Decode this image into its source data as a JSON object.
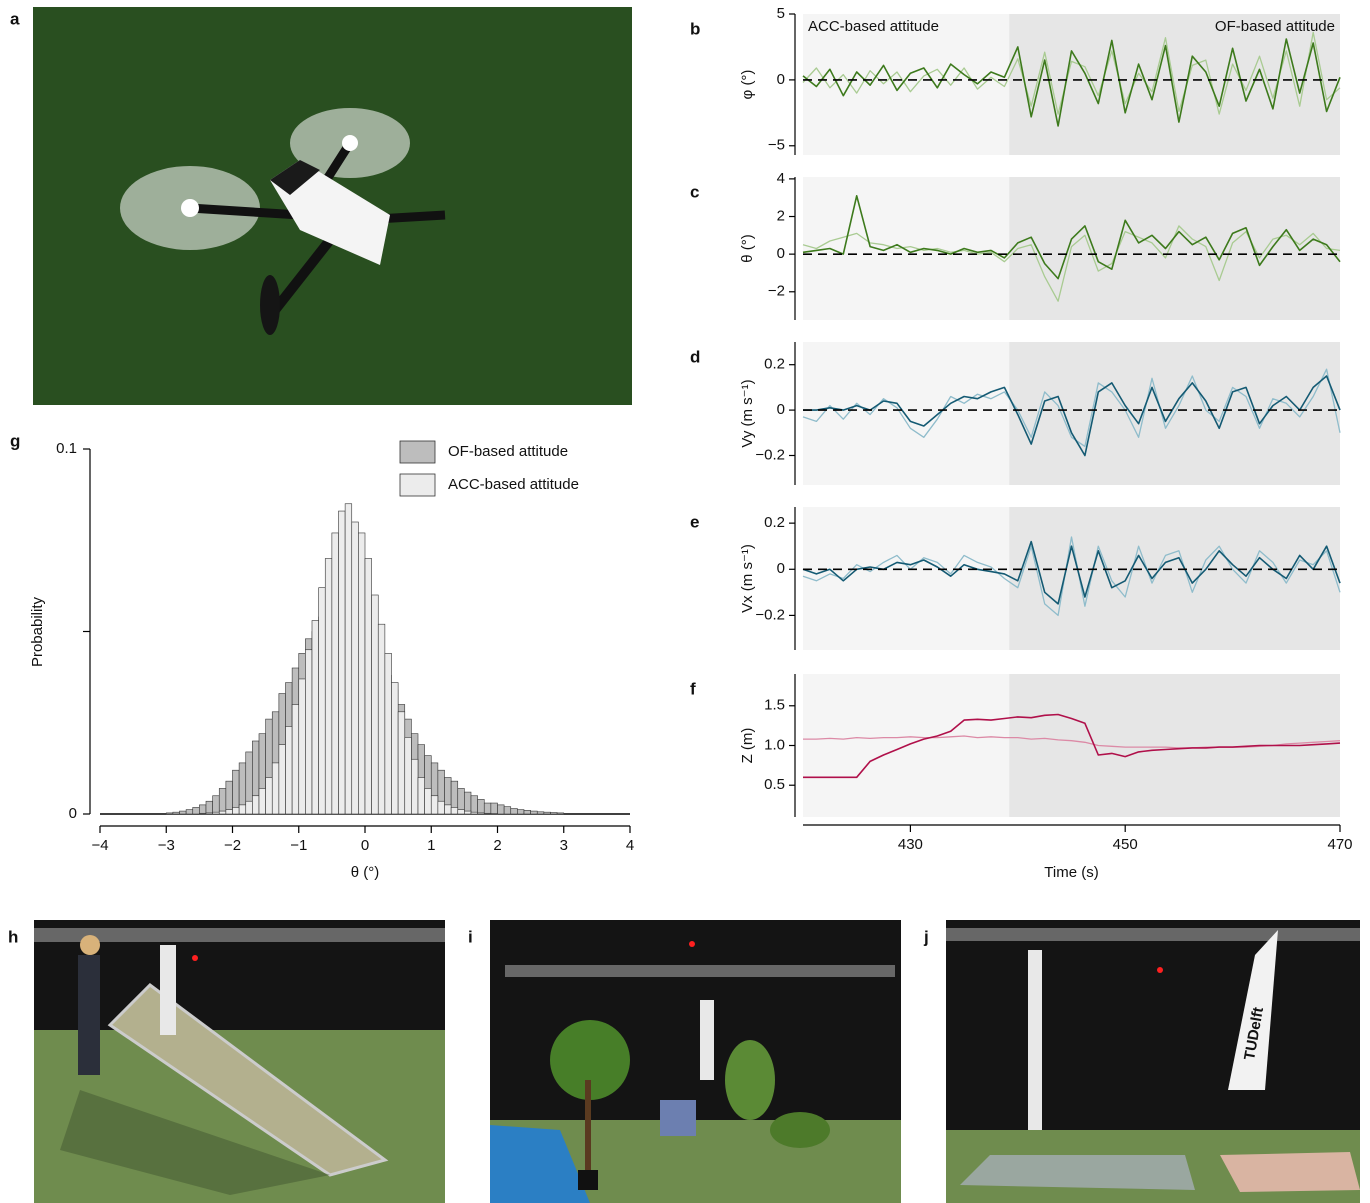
{
  "photos": [
    {
      "label": "a"
    },
    {
      "label": "h"
    },
    {
      "label": "i"
    },
    {
      "label": "j",
      "flag_text": "TUDelft"
    }
  ],
  "chart_data": [
    {
      "type": "histogram",
      "label": "g",
      "xlabel": "θ (°)",
      "ylabel": "Probability",
      "xlim": [
        -4,
        4
      ],
      "ylim": [
        0,
        0.1
      ],
      "xticks": [
        {
          "value": -4,
          "label": "−4"
        },
        {
          "value": -3,
          "label": "−3"
        },
        {
          "value": -2,
          "label": "−2"
        },
        {
          "value": -1,
          "label": "−1"
        },
        0,
        1,
        2,
        3,
        4
      ],
      "yticks": [
        0,
        0.1
      ],
      "yminor_ticks": [
        0.05
      ],
      "legend": "upper right",
      "bins": [
        -3,
        -2.9,
        -2.8,
        -2.7,
        -2.6,
        -2.5,
        -2.4,
        -2.3,
        -2.2,
        -2.1,
        -2,
        -1.9,
        -1.8,
        -1.7,
        -1.6,
        -1.5,
        -1.4,
        -1.3,
        -1.2,
        -1.1,
        -1,
        -0.9,
        -0.8,
        -0.7,
        -0.6,
        -0.5,
        -0.4,
        -0.3,
        -0.2,
        -0.1,
        0,
        0.1,
        0.2,
        0.3,
        0.4,
        0.5,
        0.6,
        0.7,
        0.8,
        0.9,
        1,
        1.1,
        1.2,
        1.3,
        1.4,
        1.5,
        1.6,
        1.7,
        1.8,
        1.9,
        2,
        2.1,
        2.2,
        2.3,
        2.4,
        2.5,
        2.6,
        2.7,
        2.8,
        2.9,
        3
      ],
      "series": [
        {
          "name": "OF-based attitude",
          "color": "#bdbdbd",
          "values": [
            0.0003,
            0.0005,
            0.0008,
            0.0012,
            0.0018,
            0.0025,
            0.0035,
            0.005,
            0.007,
            0.009,
            0.012,
            0.014,
            0.017,
            0.02,
            0.022,
            0.026,
            0.028,
            0.033,
            0.036,
            0.04,
            0.044,
            0.048,
            0.05,
            0.054,
            0.057,
            0.055,
            0.051,
            0.05,
            0.047,
            0.052,
            0.049,
            0.047,
            0.042,
            0.038,
            0.034,
            0.03,
            0.026,
            0.022,
            0.019,
            0.016,
            0.014,
            0.012,
            0.01,
            0.009,
            0.007,
            0.006,
            0.005,
            0.004,
            0.003,
            0.003,
            0.0025,
            0.002,
            0.0015,
            0.0012,
            0.001,
            0.0008,
            0.0006,
            0.0005,
            0.0004,
            0.0003
          ]
        },
        {
          "name": "ACC-based attitude",
          "color": "#ececec",
          "values": [
            0,
            0,
            0,
            0,
            0,
            0.0002,
            0.0003,
            0.0005,
            0.0008,
            0.0012,
            0.0018,
            0.0025,
            0.0035,
            0.005,
            0.007,
            0.01,
            0.014,
            0.019,
            0.024,
            0.03,
            0.037,
            0.045,
            0.053,
            0.062,
            0.07,
            0.077,
            0.083,
            0.085,
            0.08,
            0.077,
            0.07,
            0.06,
            0.052,
            0.044,
            0.036,
            0.028,
            0.021,
            0.015,
            0.01,
            0.007,
            0.005,
            0.0035,
            0.0025,
            0.0018,
            0.0012,
            0.0008,
            0.0005,
            0.0003,
            0.0002,
            0.0001,
            0,
            0,
            0,
            0,
            0,
            0,
            0,
            0,
            0,
            0
          ]
        }
      ]
    },
    {
      "type": "line",
      "xlabel": "Time (s)",
      "xlim": [
        420,
        470
      ],
      "xticks": [
        430,
        450,
        470
      ],
      "x": [
        420,
        421.25,
        422.5,
        423.75,
        425,
        426.25,
        427.5,
        428.75,
        430,
        431.25,
        432.5,
        433.75,
        435,
        436.25,
        437.5,
        438.75,
        440,
        441.25,
        442.5,
        443.75,
        445,
        446.25,
        447.5,
        448.75,
        450,
        451.25,
        452.5,
        453.75,
        455,
        456.25,
        457.5,
        458.75,
        460,
        461.25,
        462.5,
        463.75,
        465,
        466.25,
        467.5,
        468.75,
        470
      ],
      "regions": [
        {
          "label": "ACC-based attitude",
          "xlim": [
            420,
            439.2
          ],
          "color": "#f5f5f5"
        },
        {
          "label": "OF-based attitude",
          "xlim": [
            439.2,
            470
          ],
          "color": "#e6e6e6"
        }
      ],
      "panels": [
        {
          "label": "b",
          "ylabel": "φ (°)",
          "ylim": [
            -5.7,
            5
          ],
          "yticks": [
            {
              "value": -5,
              "label": "−5"
            },
            0,
            5
          ],
          "hline": 0,
          "series": [
            {
              "color": "#a9cb92",
              "values": [
                -0.2,
                0.9,
                -0.6,
                0.4,
                -1.0,
                0.7,
                -0.3,
                0.6,
                -0.9,
                0.3,
                0.8,
                -0.4,
                0.9,
                -0.7,
                0.2,
                -0.5,
                1.6,
                -2.0,
                2.1,
                -2.6,
                1.4,
                1.0,
                -1.2,
                2.2,
                -1.8,
                0.5,
                -0.9,
                3.2,
                -2.4,
                1.1,
                1.5,
                -2.6,
                1.2,
                -0.8,
                1.8,
                -1.4,
                2.2,
                -2.0,
                3.6,
                -1.5,
                -0.6
              ]
            },
            {
              "color": "#3d7a1c",
              "values": [
                0.3,
                -0.5,
                0.8,
                -1.2,
                0.6,
                -0.4,
                1.1,
                -0.8,
                0.5,
                0.9,
                -0.6,
                1.2,
                0.4,
                -0.3,
                0.6,
                0.2,
                2.5,
                -2.8,
                1.5,
                -3.5,
                2.2,
                0.5,
                -1.8,
                3.0,
                -2.5,
                1.2,
                -1.5,
                2.6,
                -3.2,
                1.8,
                0.6,
                -2.0,
                2.4,
                -1.6,
                0.8,
                -2.2,
                3.1,
                -1.0,
                2.8,
                -2.4,
                0.2
              ]
            }
          ]
        },
        {
          "label": "c",
          "ylabel": "θ (°)",
          "ylim": [
            -3.5,
            4.1
          ],
          "yticks": [
            {
              "value": -2,
              "label": "−2"
            },
            0,
            2,
            4
          ],
          "hline": 0,
          "series": [
            {
              "color": "#a9cb92",
              "values": [
                0.5,
                0.3,
                0.7,
                0.9,
                1.1,
                0.6,
                0.5,
                0.3,
                0.4,
                0.2,
                0.3,
                0.1,
                0.2,
                0.0,
                0.1,
                -0.4,
                0.3,
                0.5,
                -1.2,
                -2.5,
                0.4,
                1.0,
                -0.9,
                -0.5,
                1.2,
                0.9,
                0.6,
                -0.2,
                1.5,
                0.8,
                0.4,
                -1.4,
                0.6,
                1.2,
                -0.2,
                0.8,
                1.0,
                0.5,
                1.1,
                0.3,
                0.2
              ]
            },
            {
              "color": "#3d7a1c",
              "values": [
                0.1,
                0.2,
                0.3,
                0.0,
                3.1,
                0.4,
                0.2,
                0.5,
                0.1,
                0.3,
                0.2,
                0.0,
                0.3,
                0.1,
                0.2,
                -0.2,
                0.6,
                0.9,
                -0.5,
                -1.3,
                0.8,
                1.5,
                -0.4,
                -0.8,
                1.8,
                0.6,
                1.0,
                0.3,
                1.2,
                0.5,
                0.9,
                -0.3,
                1.1,
                1.4,
                -0.6,
                0.4,
                1.3,
                0.2,
                0.8,
                0.5,
                -0.4
              ]
            }
          ]
        },
        {
          "label": "d",
          "ylabel": "Vy (m s⁻¹)",
          "ylim": [
            -0.33,
            0.3
          ],
          "yticks": [
            {
              "value": -0.2,
              "label": "−0.2"
            },
            0,
            0.2
          ],
          "hline": 0,
          "series": [
            {
              "color": "#8fbccb",
              "values": [
                -0.03,
                -0.05,
                0.02,
                -0.04,
                0.03,
                -0.02,
                0.05,
                0.01,
                -0.08,
                -0.12,
                -0.04,
                0.06,
                0.03,
                0.07,
                0.05,
                0.08,
                0.0,
                -0.12,
                0.08,
                0.02,
                -0.12,
                -0.16,
                0.12,
                0.08,
                0.0,
                -0.12,
                0.14,
                -0.08,
                0.02,
                0.15,
                0.0,
                -0.05,
                0.1,
                0.06,
                -0.08,
                0.05,
                0.03,
                -0.03,
                0.06,
                0.18,
                -0.1
              ]
            },
            {
              "color": "#145a73",
              "values": [
                0.0,
                0.0,
                0.01,
                0.0,
                0.02,
                0.0,
                0.04,
                0.03,
                -0.05,
                -0.07,
                -0.02,
                0.03,
                0.06,
                0.05,
                0.08,
                0.1,
                -0.02,
                -0.15,
                0.04,
                0.06,
                -0.1,
                -0.2,
                0.08,
                0.12,
                0.02,
                -0.06,
                0.1,
                -0.05,
                0.05,
                0.12,
                0.04,
                -0.08,
                0.08,
                0.1,
                -0.06,
                0.02,
                0.06,
                0.0,
                0.1,
                0.15,
                0.0
              ]
            }
          ]
        },
        {
          "label": "e",
          "ylabel": "Vx (m s⁻¹)",
          "ylim": [
            -0.35,
            0.27
          ],
          "yticks": [
            {
              "value": -0.2,
              "label": "−0.2"
            },
            0,
            0.2
          ],
          "hline": 0,
          "series": [
            {
              "color": "#8fbccb",
              "values": [
                -0.03,
                -0.05,
                -0.02,
                -0.04,
                0.02,
                -0.01,
                0.03,
                0.06,
                0.0,
                0.05,
                0.03,
                -0.02,
                0.06,
                0.03,
                0.01,
                -0.04,
                -0.08,
                0.1,
                -0.15,
                -0.2,
                0.14,
                -0.16,
                0.1,
                -0.05,
                -0.12,
                0.1,
                -0.06,
                0.06,
                0.08,
                -0.1,
                0.04,
                0.1,
                0.0,
                -0.06,
                0.08,
                0.03,
                -0.06,
                0.04,
                0.02,
                0.08,
                -0.1
              ]
            },
            {
              "color": "#145a73",
              "values": [
                0.0,
                -0.02,
                0.0,
                -0.05,
                0.0,
                0.01,
                0.0,
                0.03,
                0.02,
                0.04,
                0.01,
                -0.03,
                0.02,
                0.0,
                -0.01,
                -0.02,
                -0.05,
                0.12,
                -0.1,
                -0.15,
                0.1,
                -0.12,
                0.08,
                -0.08,
                -0.05,
                0.06,
                -0.04,
                0.03,
                0.05,
                -0.06,
                0.0,
                0.08,
                0.02,
                -0.03,
                0.05,
                0.0,
                -0.04,
                0.06,
                0.0,
                0.1,
                -0.06
              ]
            }
          ]
        },
        {
          "label": "f",
          "ylabel": "Z (m)",
          "ylim": [
            0.1,
            1.9
          ],
          "yticks": [
            0.5,
            {
              "value": 1,
              "label": "1.0"
            },
            1.5
          ],
          "series": [
            {
              "color": "#dc8aa6",
              "values": [
                1.08,
                1.08,
                1.09,
                1.08,
                1.1,
                1.09,
                1.1,
                1.1,
                1.11,
                1.1,
                1.1,
                1.11,
                1.12,
                1.1,
                1.11,
                1.1,
                1.1,
                1.08,
                1.09,
                1.07,
                1.06,
                1.04,
                1.0,
                0.99,
                0.98,
                0.98,
                0.98,
                0.98,
                0.97,
                0.97,
                0.98,
                0.98,
                0.98,
                0.98,
                0.99,
                1.0,
                1.02,
                1.03,
                1.04,
                1.05,
                1.06
              ]
            },
            {
              "color": "#b0104a",
              "values": [
                0.6,
                0.6,
                0.6,
                0.6,
                0.6,
                0.8,
                0.88,
                0.95,
                1.02,
                1.08,
                1.12,
                1.18,
                1.32,
                1.33,
                1.32,
                1.34,
                1.36,
                1.35,
                1.38,
                1.39,
                1.34,
                1.28,
                0.88,
                0.9,
                0.86,
                0.92,
                0.94,
                0.95,
                0.96,
                0.97,
                0.97,
                0.98,
                0.98,
                0.99,
                1.0,
                1.0,
                1.0,
                1.0,
                1.01,
                1.02,
                1.03
              ]
            }
          ]
        }
      ]
    }
  ]
}
